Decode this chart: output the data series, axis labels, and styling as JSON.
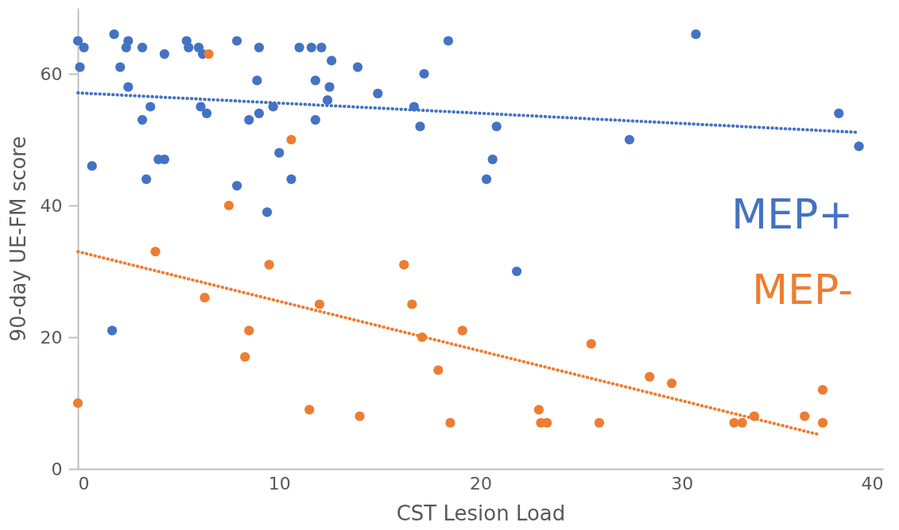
{
  "chart_data": {
    "type": "scatter",
    "xlabel": "CST Lesion Load",
    "ylabel": "90-day UE-FM score",
    "xlim": [
      0,
      40
    ],
    "xticks": [
      0,
      10,
      20,
      30,
      40
    ],
    "ylim": [
      0,
      70
    ],
    "yticks": [
      0,
      20,
      40,
      60
    ],
    "grid": false,
    "legend": false,
    "series": [
      {
        "name": "MEP+",
        "marker": "circle",
        "color": "#4472c4",
        "x": [
          0.0,
          0.3,
          0.1,
          1.8,
          2.5,
          2.4,
          2.1,
          2.5,
          3.2,
          4.3,
          0.7,
          3.6,
          3.2,
          4.0,
          4.3,
          3.4,
          5.4,
          5.5,
          6.0,
          6.2,
          6.1,
          6.4,
          7.9,
          9.0,
          8.9,
          9.0,
          8.5,
          7.9,
          9.7,
          11.0,
          11.6,
          12.1,
          12.6,
          13.9,
          18.4,
          17.2,
          11.8,
          12.5,
          12.4,
          14.9,
          16.7,
          11.8,
          17.0,
          20.8,
          10.0,
          20.6,
          10.6,
          20.3,
          9.4,
          1.7,
          30.7,
          37.8,
          38.8,
          27.4,
          21.8
        ],
        "values": [
          65,
          64,
          61,
          66,
          65,
          64,
          61,
          58,
          64,
          63,
          46,
          55,
          53,
          47,
          47,
          44,
          65,
          64,
          64,
          63,
          55,
          54,
          65,
          64,
          59,
          54,
          53,
          43,
          55,
          64,
          64,
          64,
          62,
          61,
          65,
          60,
          59,
          58,
          56,
          57,
          55,
          53,
          52,
          52,
          48,
          47,
          44,
          44,
          39,
          21,
          66,
          54,
          49,
          50,
          30
        ]
      },
      {
        "name": "MEP-",
        "marker": "circle",
        "color": "#ed7d31",
        "x": [
          6.5,
          7.5,
          10.6,
          3.85,
          9.5,
          16.2,
          6.3,
          12.0,
          16.6,
          8.5,
          17.1,
          8.3,
          17.9,
          0.0,
          11.5,
          14.0,
          19.1,
          25.5,
          28.4,
          29.5,
          37.0,
          22.9,
          33.6,
          36.1,
          18.5,
          23.0,
          23.3,
          25.9,
          32.6,
          33.0,
          37.0
        ],
        "values": [
          63,
          40,
          50,
          33,
          31,
          31,
          26,
          25,
          25,
          21,
          20,
          17,
          15,
          10,
          9,
          8,
          21,
          19,
          14,
          13,
          12,
          9,
          8,
          8,
          7,
          7,
          7,
          7,
          7,
          7,
          7
        ]
      },
      {
        "type": "line",
        "marker": "none",
        "line_style": "dotted",
        "color": "#4472c4",
        "x": [
          0,
          38.8
        ],
        "values": [
          57.1,
          51.1
        ]
      },
      {
        "type": "line",
        "marker": "none",
        "line_style": "dotted",
        "color": "#ed7d31",
        "x": [
          0,
          36.7
        ],
        "values": [
          33.0,
          5.3
        ]
      }
    ]
  }
}
